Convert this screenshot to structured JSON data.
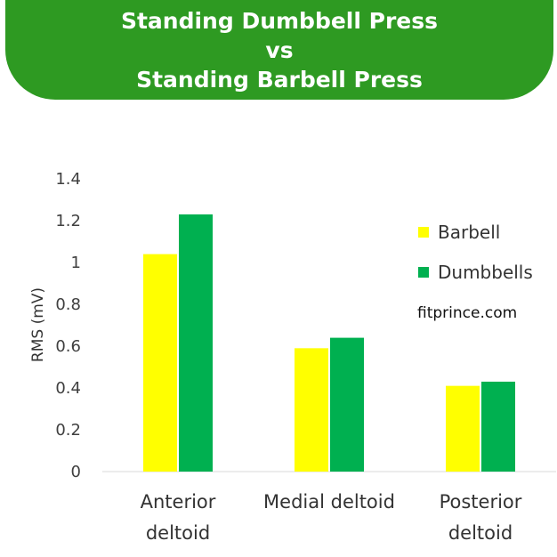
{
  "banner": {
    "line1": "Standing Dumbbell Press",
    "line2": "vs",
    "line3": "Standing Barbell Press"
  },
  "watermark": "fitprince.com",
  "colors": {
    "banner": "#2e9a22",
    "barbell": "#ffff00",
    "dumbbells": "#00b050"
  },
  "chart_data": {
    "type": "bar",
    "categories": [
      "Anterior deltoid",
      "Medial deltoid",
      "Posterior deltoid"
    ],
    "category_lines": [
      [
        "Anterior",
        "deltoid"
      ],
      [
        "Medial deltoid"
      ],
      [
        "Posterior",
        "deltoid"
      ]
    ],
    "series": [
      {
        "name": "Barbell",
        "values": [
          1.04,
          0.59,
          0.41
        ],
        "color": "#ffff00"
      },
      {
        "name": "Dumbbells",
        "values": [
          1.23,
          0.64,
          0.43
        ],
        "color": "#00b050"
      }
    ],
    "ylabel": "RMS (mV)",
    "ylim": [
      0,
      1.4
    ],
    "yticks": [
      "0",
      "0.2",
      "0.4",
      "0.6",
      "0.8",
      "1",
      "1.2",
      "1.4"
    ],
    "ytick_values": [
      0,
      0.2,
      0.4,
      0.6,
      0.8,
      1.0,
      1.2,
      1.4
    ],
    "grid": false,
    "legend_position": "right"
  }
}
